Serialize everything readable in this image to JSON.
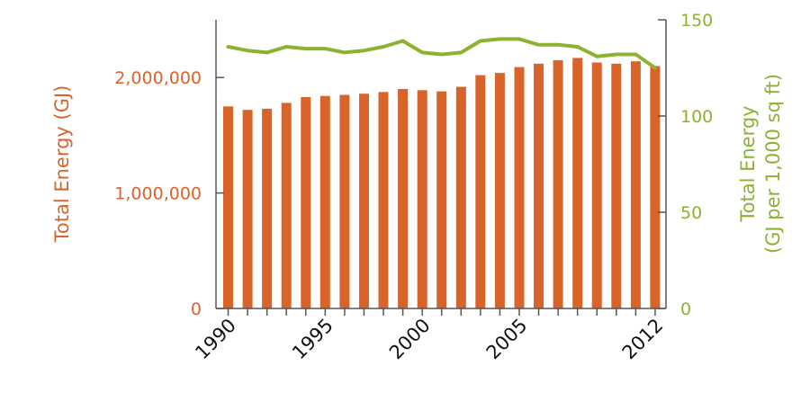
{
  "chart_data": {
    "type": "bar",
    "categories": [
      "1990",
      "1991",
      "1992",
      "1993",
      "1994",
      "1995",
      "1996",
      "1997",
      "1998",
      "1999",
      "2000",
      "2001",
      "2002",
      "2003",
      "2004",
      "2005",
      "2006",
      "2007",
      "2008",
      "2009",
      "2010",
      "2011",
      "2012"
    ],
    "series": [
      {
        "axis": "left",
        "type": "bar",
        "color": "#d9642a",
        "values": [
          1750000,
          1720000,
          1730000,
          1780000,
          1830000,
          1840000,
          1850000,
          1860000,
          1875000,
          1900000,
          1890000,
          1880000,
          1920000,
          2020000,
          2040000,
          2090000,
          2120000,
          2150000,
          2170000,
          2130000,
          2120000,
          2140000,
          2100000
        ]
      },
      {
        "axis": "right",
        "type": "line",
        "color": "#8db230",
        "values": [
          136,
          134,
          133,
          136,
          135,
          135,
          133,
          134,
          136,
          139,
          133,
          132,
          133,
          139,
          140,
          140,
          137,
          137,
          136,
          131,
          132,
          132,
          125
        ]
      }
    ],
    "ylabel_left": "Total Energy (GJ)",
    "ylabel_right_lines": [
      "Total Energy",
      "(GJ per 1,000 sq ft)"
    ],
    "ylim_left": [
      0,
      2500000
    ],
    "ylim_right": [
      0,
      150
    ],
    "yticks_left": [
      0,
      1000000,
      2000000
    ],
    "yticks_left_labels": [
      "0",
      "1,000,000",
      "2,000,000"
    ],
    "yticks_right": [
      0,
      50,
      100,
      150
    ],
    "yticks_right_labels": [
      "0",
      "50",
      "100",
      "150"
    ],
    "xtick_labels": [
      {
        "category": "1990",
        "label": "1990"
      },
      {
        "category": "1995",
        "label": "1995"
      },
      {
        "category": "2000",
        "label": "2000"
      },
      {
        "category": "2005",
        "label": "2005"
      },
      {
        "category": "2012",
        "label": "2012"
      }
    ],
    "grid": false
  }
}
